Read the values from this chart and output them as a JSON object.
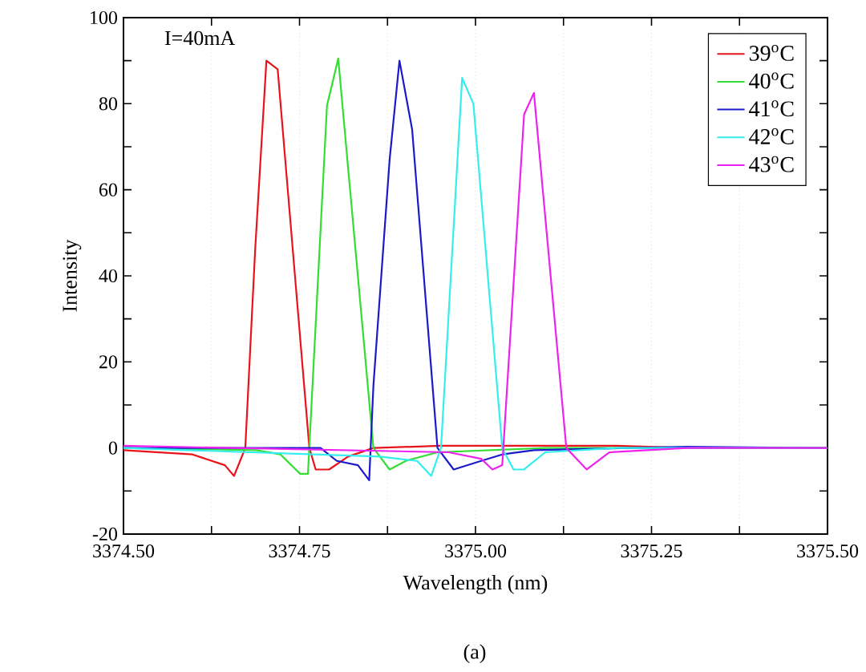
{
  "chart_data": {
    "type": "line",
    "xlabel": "Wavelength (nm)",
    "ylabel": "Intensity",
    "annotations": [
      "I=40mA",
      "(a)"
    ],
    "xlim": [
      3374.5,
      3375.5
    ],
    "xticks": [
      {
        "value": 3374.5,
        "label": "3374.50"
      },
      {
        "value": 3374.625,
        "label": null
      },
      {
        "value": 3374.75,
        "label": "3374.75"
      },
      {
        "value": 3374.875,
        "label": null
      },
      {
        "value": 3375.0,
        "label": "3375.00"
      },
      {
        "value": 3375.125,
        "label": null
      },
      {
        "value": 3375.25,
        "label": "3375.25"
      },
      {
        "value": 3375.375,
        "label": null
      },
      {
        "value": 3375.5,
        "label": "3375.50"
      }
    ],
    "ylim": [
      -20,
      100
    ],
    "yticks": [
      -20,
      {
        "value": -10,
        "label": null
      },
      0,
      {
        "value": 10,
        "label": null
      },
      20,
      {
        "value": 30,
        "label": null
      },
      40,
      {
        "value": 50,
        "label": null
      },
      60,
      {
        "value": 70,
        "label": null
      },
      80,
      {
        "value": 90,
        "label": null
      },
      100
    ],
    "grid": "x",
    "legend": "top right",
    "marker": "none",
    "line_style": "solid",
    "series": [
      {
        "name": "39$^{o}$C",
        "color": "#e8141b",
        "x": [
          3374.5,
          3374.598,
          3374.644,
          3374.657,
          3374.673,
          3374.687,
          3374.703,
          3374.719,
          3374.764,
          3374.773,
          3374.792,
          3374.819,
          3374.855,
          3374.95,
          3375.1,
          3375.2,
          3375.3,
          3375.5
        ],
        "values": [
          -0.5,
          -1.5,
          -4,
          -6.5,
          0,
          46,
          90,
          88,
          0,
          -5,
          -5,
          -2,
          0,
          0.5,
          0.5,
          0.5,
          0,
          0
        ]
      },
      {
        "name": "40$^{o}$C",
        "color": "#33dd33",
        "x": [
          3374.5,
          3374.689,
          3374.723,
          3374.751,
          3374.762,
          3374.789,
          3374.805,
          3374.855,
          3374.878,
          3374.901,
          3374.946,
          3375.1,
          3375.3,
          3375.5
        ],
        "values": [
          0,
          -0.5,
          -1.5,
          -6,
          -6,
          79.5,
          90.5,
          0,
          -5,
          -3,
          -1,
          0,
          0,
          0
        ]
      },
      {
        "name": "41$^{o}$C",
        "color": "#1a1acc",
        "x": [
          3374.5,
          3374.78,
          3374.803,
          3374.833,
          3374.849,
          3374.855,
          3374.878,
          3374.892,
          3374.91,
          3374.946,
          3374.969,
          3375.008,
          3375.038,
          3375.083,
          3375.3,
          3375.5
        ],
        "values": [
          0,
          0,
          -3,
          -4,
          -7.5,
          14.5,
          67,
          90,
          74,
          0,
          -5,
          -3,
          -1.5,
          -0.5,
          0.3,
          0
        ]
      },
      {
        "name": "42$^{o}$C",
        "color": "#33eeee",
        "x": [
          3374.5,
          3374.864,
          3374.917,
          3374.937,
          3374.951,
          3374.981,
          3374.997,
          3375.038,
          3375.054,
          3375.069,
          3375.099,
          3375.2,
          3375.5
        ],
        "values": [
          0,
          -2,
          -3,
          -6.5,
          0,
          86,
          80,
          0,
          -5,
          -5,
          -1,
          0,
          0
        ]
      },
      {
        "name": "43$^{o}$C",
        "color": "#ee22ee",
        "x": [
          3374.5,
          3374.962,
          3375.008,
          3375.024,
          3375.038,
          3375.069,
          3375.083,
          3375.129,
          3375.158,
          3375.19,
          3375.3,
          3375.5
        ],
        "values": [
          0.5,
          -1,
          -2.5,
          -5,
          -4,
          77.5,
          82.5,
          0,
          -5,
          -1,
          0,
          0
        ]
      }
    ]
  }
}
